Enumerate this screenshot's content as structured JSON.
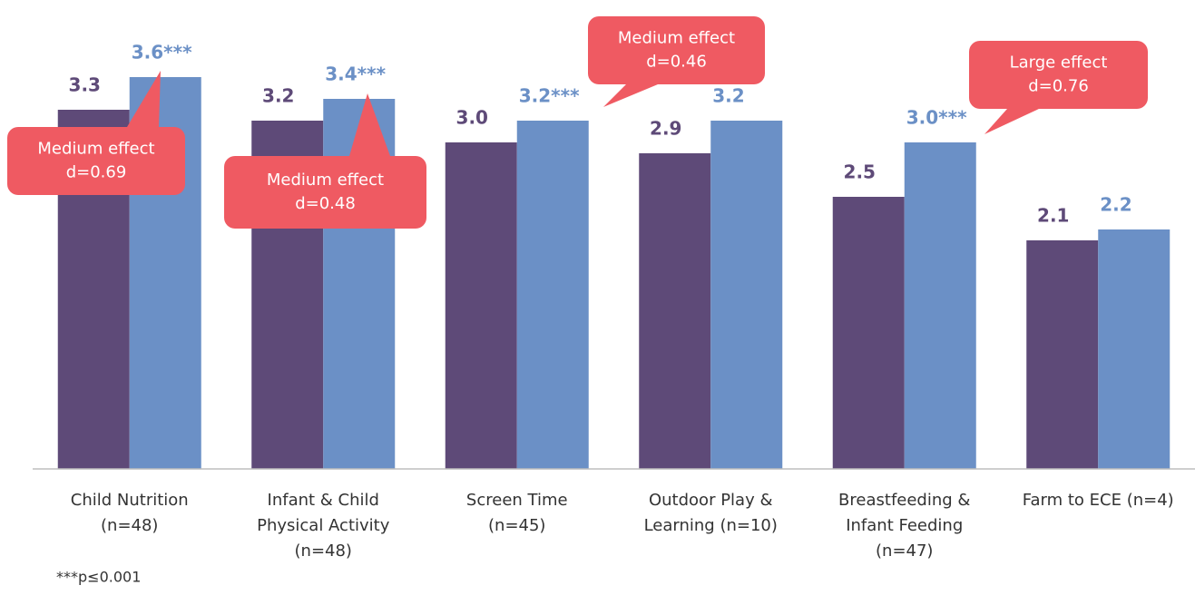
{
  "chart_data": {
    "type": "bar",
    "categories": [
      [
        "Child Nutrition",
        "(n=48)"
      ],
      [
        "Infant & Child",
        "Physical Activity",
        "(n=48)"
      ],
      [
        "Screen Time",
        "(n=45)"
      ],
      [
        "Outdoor Play &",
        "Learning (n=10)"
      ],
      [
        "Breastfeeding &",
        "Infant Feeding",
        "(n=47)"
      ],
      [
        "Farm to ECE (n=4)"
      ]
    ],
    "series": [
      {
        "color": "#5e4a78",
        "values": [
          3.3,
          3.2,
          3.0,
          2.9,
          2.5,
          2.1
        ],
        "value_labels": [
          "3.3",
          "3.2",
          "3.0",
          "2.9",
          "2.5",
          "2.1"
        ]
      },
      {
        "color": "#6b90c6",
        "values": [
          3.6,
          3.4,
          3.2,
          3.2,
          3.0,
          2.2
        ],
        "value_labels": [
          "3.6***",
          "3.4***",
          "3.2***",
          "3.2",
          "3.0***",
          "2.2"
        ]
      }
    ],
    "ylim": [
      0,
      4.3
    ],
    "annotations": [
      [
        "Medium effect",
        "d=0.69"
      ],
      [
        "Medium effect",
        "d=0.48"
      ],
      [
        "Medium effect",
        "d=0.46"
      ],
      [
        "Large effect",
        "d=0.76"
      ]
    ],
    "annotation_color": "#ef5a62",
    "footnote": "***p≤0.001"
  }
}
